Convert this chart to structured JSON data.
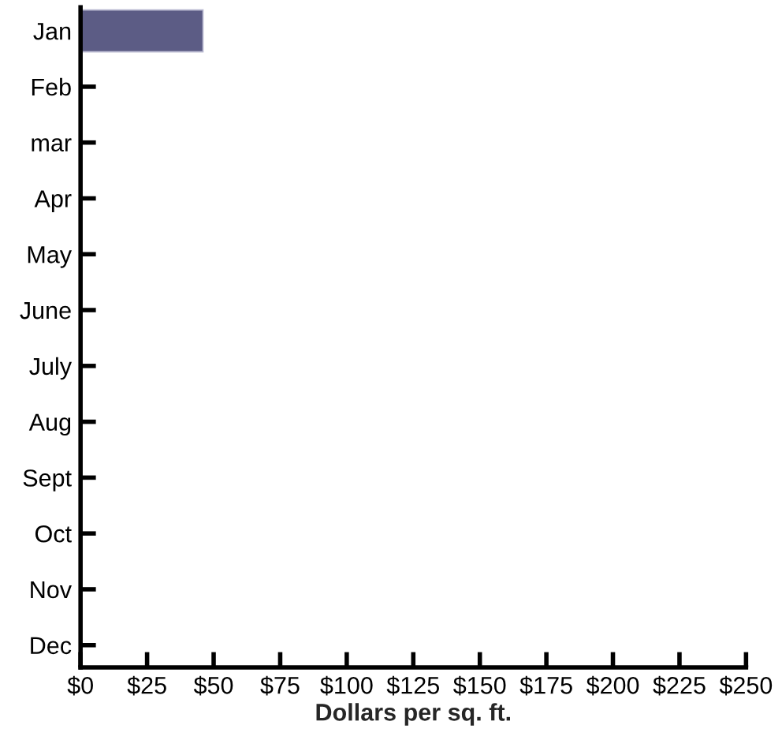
{
  "chart_data": {
    "type": "bar",
    "orientation": "horizontal",
    "xlabel": "Dollars per sq. ft.",
    "categories": [
      "Jan",
      "Feb",
      "mar",
      "Apr",
      "May",
      "June",
      "July",
      "Aug",
      "Sept",
      "Oct",
      "Nov",
      "Dec"
    ],
    "values": [
      46,
      null,
      null,
      null,
      null,
      null,
      null,
      null,
      null,
      null,
      null,
      null
    ],
    "color": "#5c5c85",
    "xlim": [
      0,
      250
    ],
    "xticks": [
      {
        "value": 0,
        "label": "$0"
      },
      {
        "value": 25,
        "label": "$25"
      },
      {
        "value": 50,
        "label": "$50"
      },
      {
        "value": 75,
        "label": "$75"
      },
      {
        "value": 100,
        "label": "$100"
      },
      {
        "value": 125,
        "label": "$125"
      },
      {
        "value": 150,
        "label": "$150"
      },
      {
        "value": 175,
        "label": "$175"
      },
      {
        "value": 200,
        "label": "$200"
      },
      {
        "value": 225,
        "label": "$225"
      },
      {
        "value": 250,
        "label": "$250"
      }
    ],
    "grid": false,
    "legend": false
  }
}
